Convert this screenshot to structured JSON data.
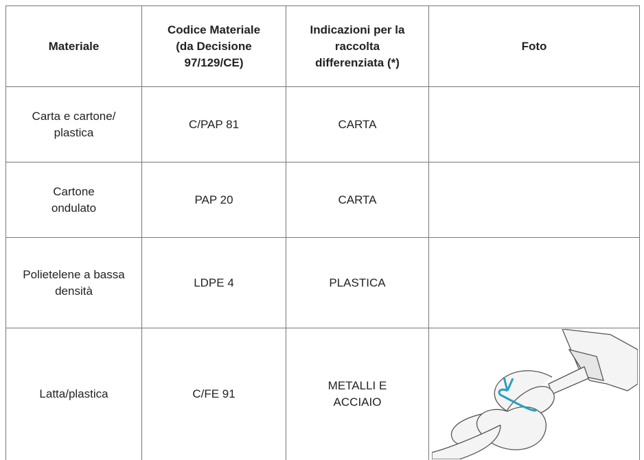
{
  "table": {
    "header": [
      "Materiale",
      "Codice Materiale (da Decisione 97/129/CE)",
      "Indicazioni per la raccolta differenziata (*)",
      "Foto"
    ],
    "rows": [
      [
        "Carta e cartone/ plastica",
        "C/PAP 81",
        "CARTA"
      ],
      [
        "Cartone ondulato",
        "PAP 20",
        "CARTA"
      ],
      [
        "Polietelene a bassa densità",
        "LDPE 4",
        "PLASTICA"
      ],
      [
        "Latta/plastica",
        "C/FE 91",
        "METALLI E ACCIAIO"
      ]
    ]
  }
}
